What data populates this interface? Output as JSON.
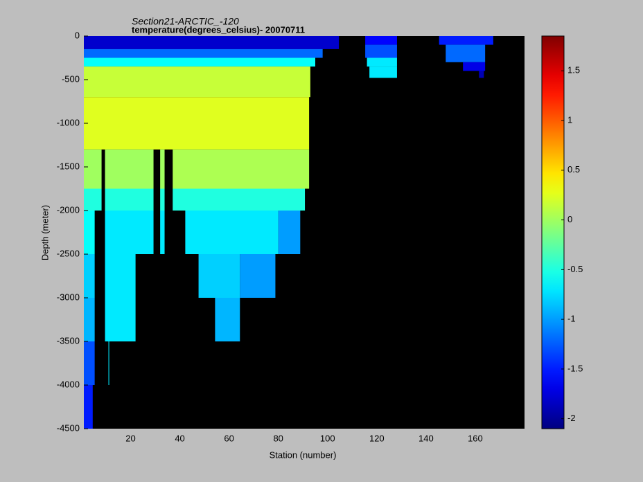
{
  "chart_data": {
    "type": "heatmap",
    "title": "Section21-ARCTIC_-120",
    "subtitle": "temperature(degrees_celsius)- 20070711",
    "xlabel": "Station (number)",
    "ylabel": "Depth (meter)",
    "xlim": [
      1,
      180
    ],
    "ylim": [
      -4500,
      0
    ],
    "xticks": [
      20,
      40,
      60,
      80,
      100,
      120,
      140,
      160
    ],
    "yticks": [
      0,
      -500,
      -1000,
      -1500,
      -2000,
      -2500,
      -3000,
      -3500,
      -4000,
      -4500
    ],
    "background": "#000000",
    "colorbar": {
      "clim": [
        -2.1,
        1.85
      ],
      "ticks": [
        -2,
        -1.5,
        -1,
        -0.5,
        0,
        0.5,
        1,
        1.5
      ],
      "colormap": "jet"
    },
    "cells": [
      {
        "x": [
          1,
          104.6
        ],
        "y": [
          0,
          -150
        ],
        "value": -1.8
      },
      {
        "x": [
          1,
          98
        ],
        "y": [
          -150,
          -250
        ],
        "value": -1.2
      },
      {
        "x": [
          1,
          95
        ],
        "y": [
          -250,
          -350
        ],
        "value": -0.6
      },
      {
        "x": [
          1,
          93
        ],
        "y": [
          -350,
          -700
        ],
        "value": 0.15
      },
      {
        "x": [
          1,
          92.5
        ],
        "y": [
          -700,
          -1300
        ],
        "value": 0.25
      },
      {
        "x": [
          1,
          8.2
        ],
        "y": [
          -1300,
          -1750
        ],
        "value": 0
      },
      {
        "x": [
          9.6,
          29.3
        ],
        "y": [
          -1300,
          -1750
        ],
        "value": 0
      },
      {
        "x": [
          32,
          33.8
        ],
        "y": [
          -1300,
          -1750
        ],
        "value": 0
      },
      {
        "x": [
          37.1,
          92.5
        ],
        "y": [
          -1300,
          -1750
        ],
        "value": 0.05
      },
      {
        "x": [
          1,
          8.2
        ],
        "y": [
          -1750,
          -2000
        ],
        "value": -0.5
      },
      {
        "x": [
          9.6,
          29.3
        ],
        "y": [
          -1750,
          -2000
        ],
        "value": -0.5
      },
      {
        "x": [
          32,
          33.8
        ],
        "y": [
          -1750,
          -2000
        ],
        "value": -0.5
      },
      {
        "x": [
          37.1,
          90.8
        ],
        "y": [
          -1750,
          -2000
        ],
        "value": -0.5
      },
      {
        "x": [
          1,
          5.4
        ],
        "y": [
          -2000,
          -2500
        ],
        "value": -0.6
      },
      {
        "x": [
          9.6,
          29.3
        ],
        "y": [
          -2000,
          -2500
        ],
        "value": -0.7
      },
      {
        "x": [
          32,
          33.8
        ],
        "y": [
          -2000,
          -2500
        ],
        "value": -0.7
      },
      {
        "x": [
          42.2,
          80
        ],
        "y": [
          -2000,
          -2500
        ],
        "value": -0.7
      },
      {
        "x": [
          80,
          88.9
        ],
        "y": [
          -2000,
          -2500
        ],
        "value": -1
      },
      {
        "x": [
          1,
          5.4
        ],
        "y": [
          -2500,
          -3000
        ],
        "value": -0.8
      },
      {
        "x": [
          9.6,
          22
        ],
        "y": [
          -2500,
          -3000
        ],
        "value": -0.7
      },
      {
        "x": [
          47.6,
          64.4
        ],
        "y": [
          -2500,
          -3000
        ],
        "value": -0.8
      },
      {
        "x": [
          64.4,
          78.8
        ],
        "y": [
          -2500,
          -3000
        ],
        "value": -1
      },
      {
        "x": [
          1,
          5.4
        ],
        "y": [
          -3000,
          -3500
        ],
        "value": -0.9
      },
      {
        "x": [
          9.6,
          22
        ],
        "y": [
          -3000,
          -3500
        ],
        "value": -0.7
      },
      {
        "x": [
          54.3,
          64.4
        ],
        "y": [
          -3000,
          -3500
        ],
        "value": -0.9
      },
      {
        "x": [
          1,
          5.4
        ],
        "y": [
          -3500,
          -4000
        ],
        "value": -1.3
      },
      {
        "x": [
          11,
          11.3
        ],
        "y": [
          -3500,
          -4000
        ],
        "value": -0.7
      },
      {
        "x": [
          1,
          4.6
        ],
        "y": [
          -4000,
          -4500
        ],
        "value": -1.5
      },
      {
        "x": [
          115.3,
          128.2
        ],
        "y": [
          0,
          -100
        ],
        "value": -1.6
      },
      {
        "x": [
          115.3,
          128.2
        ],
        "y": [
          -100,
          -250
        ],
        "value": -1.3
      },
      {
        "x": [
          116,
          128.2
        ],
        "y": [
          -250,
          -350
        ],
        "value": -0.7
      },
      {
        "x": [
          117,
          128.2
        ],
        "y": [
          -350,
          -480
        ],
        "value": -0.7
      },
      {
        "x": [
          145.3,
          167.3
        ],
        "y": [
          0,
          -100
        ],
        "value": -1.5
      },
      {
        "x": [
          148,
          164
        ],
        "y": [
          -100,
          -300
        ],
        "value": -1.2
      },
      {
        "x": [
          155,
          164
        ],
        "y": [
          -300,
          -400
        ],
        "value": -1.7
      },
      {
        "x": [
          161.5,
          163.5
        ],
        "y": [
          -400,
          -480
        ],
        "value": -1.9
      }
    ]
  }
}
